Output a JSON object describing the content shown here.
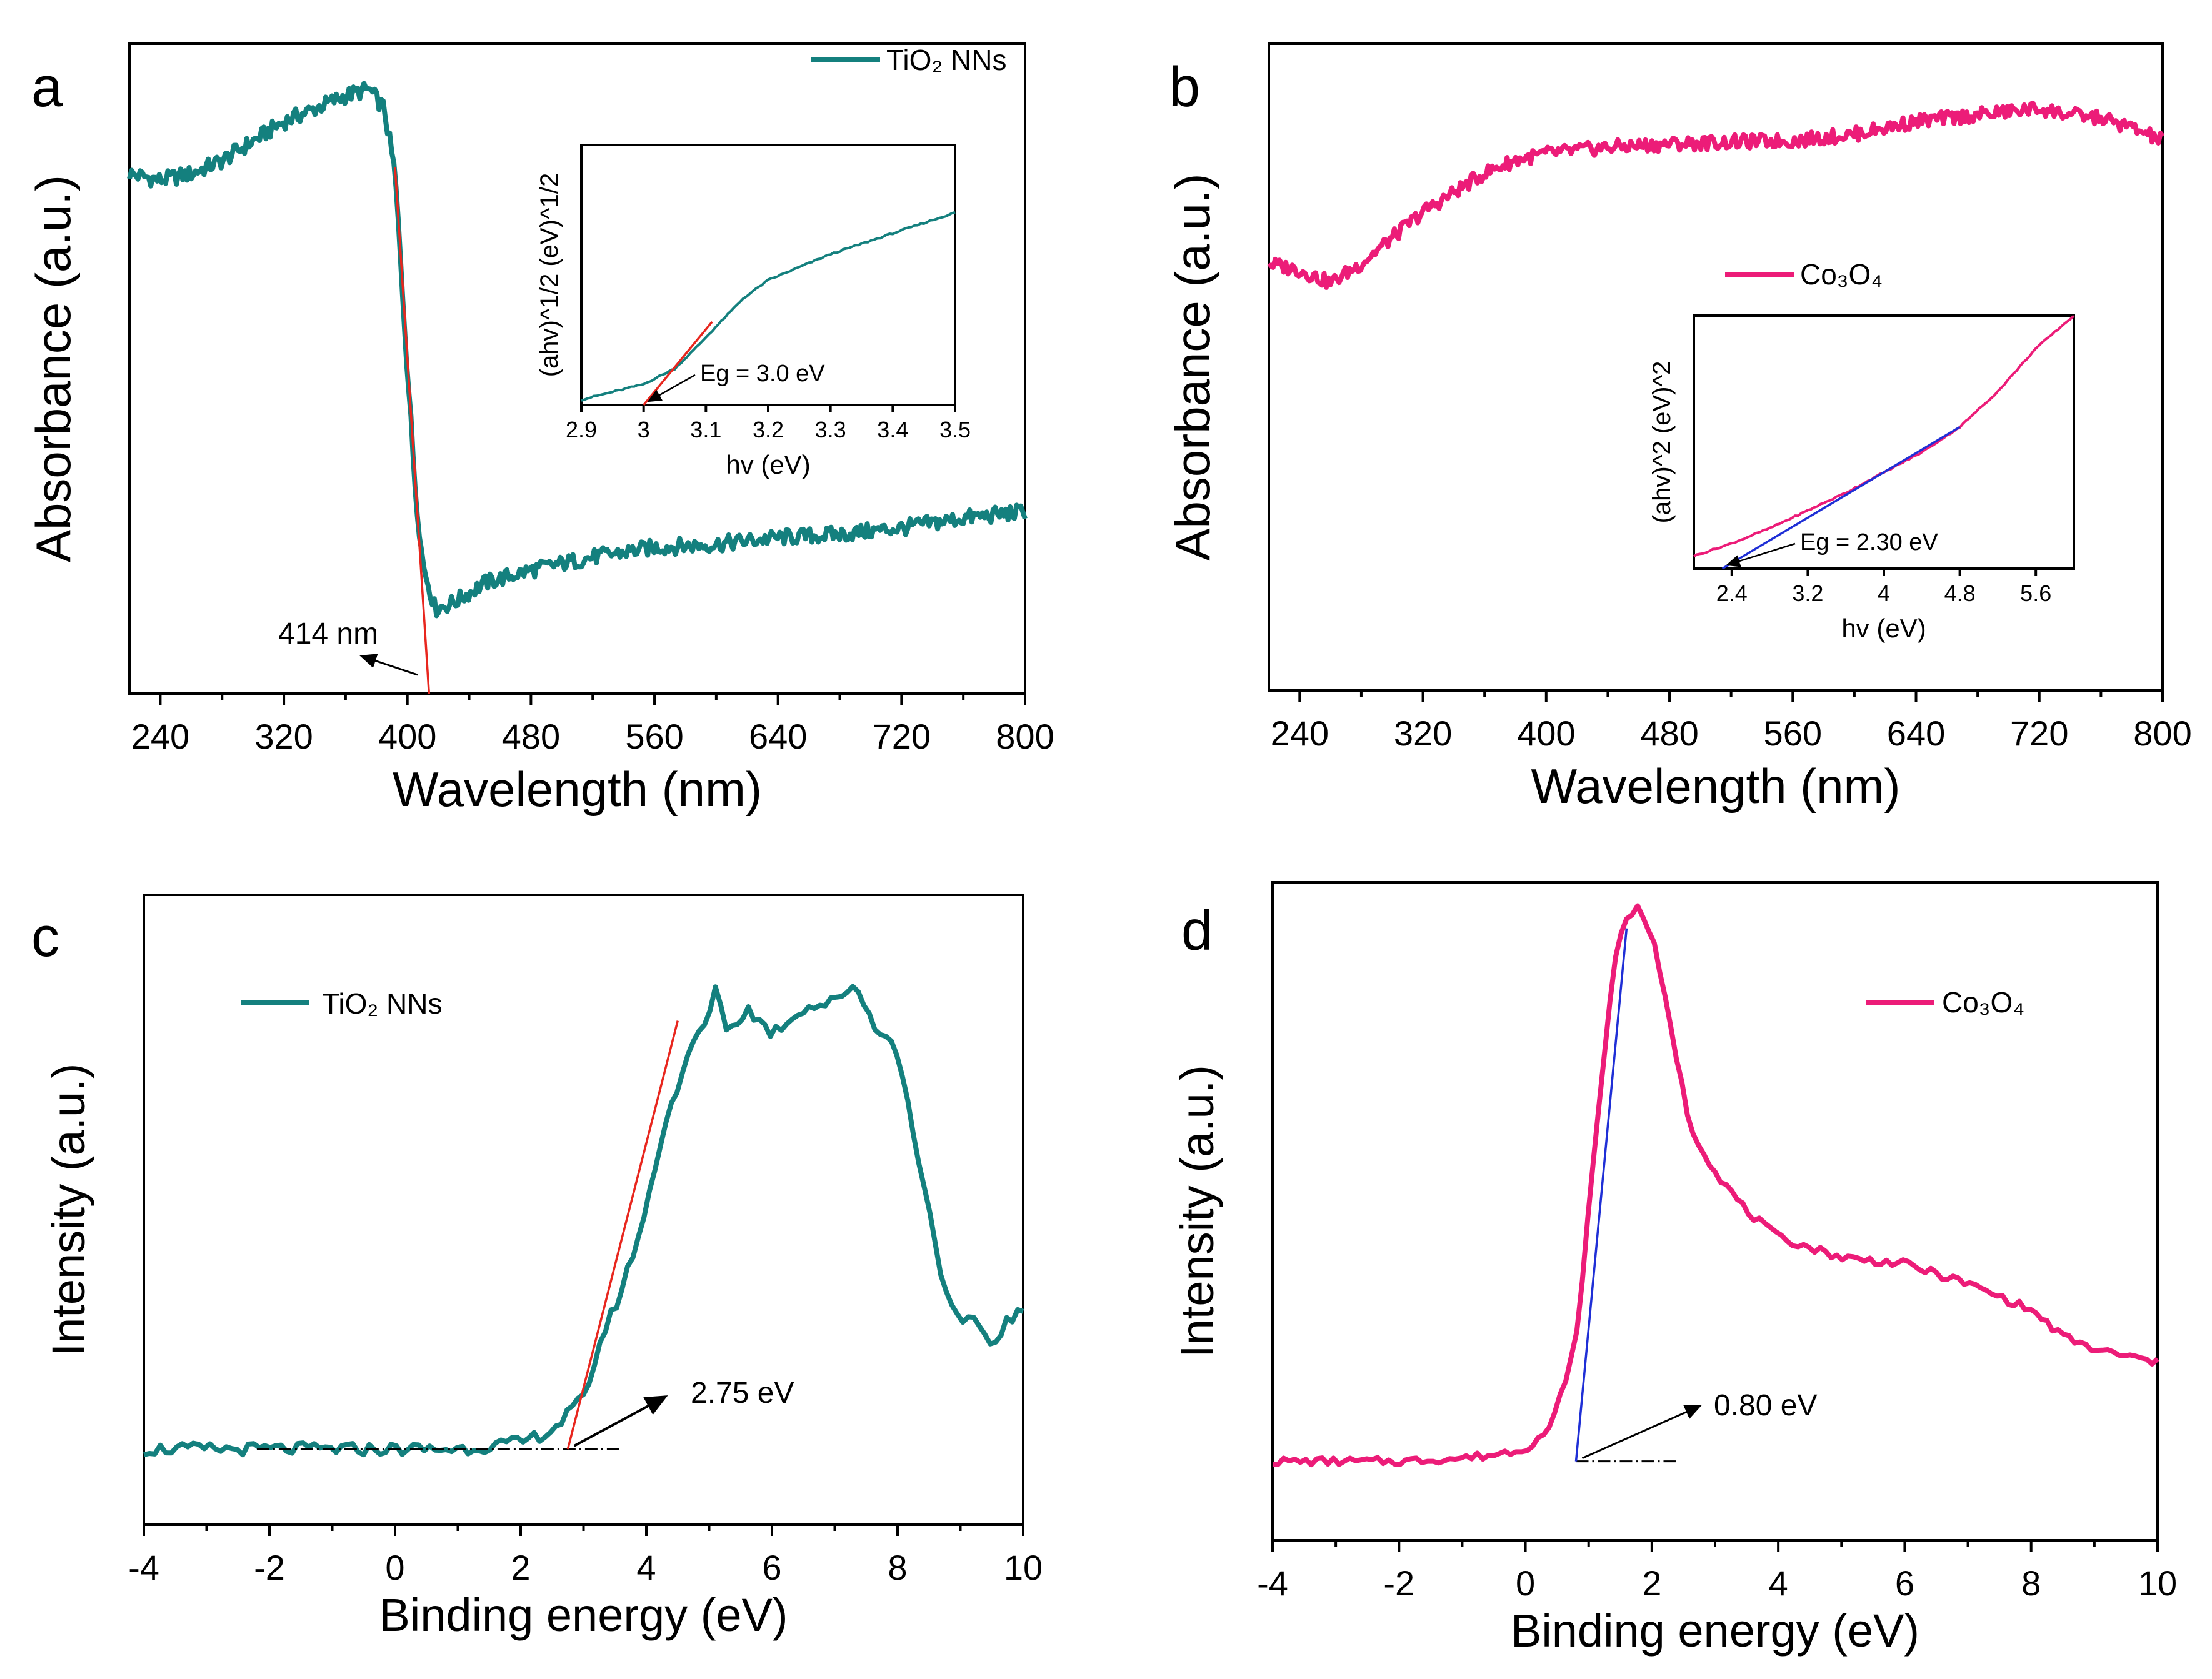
{
  "colors": {
    "tio2": "#14807E",
    "co3o4": "#EC1C78",
    "fit_red": "#E8261E",
    "fit_blue": "#1F2FD6",
    "eg_text": "#1122E8"
  },
  "chart_data": [
    {
      "panel_label": "a",
      "type": "line",
      "xlabel": "Wavelength (nm)",
      "ylabel": "Absorbance (a.u.)",
      "xlim": [
        220,
        800
      ],
      "ylim": [
        0,
        1
      ],
      "xticks": [
        240,
        320,
        400,
        480,
        560,
        640,
        720,
        800
      ],
      "legend": "TiO₂ NNs",
      "series": [
        {
          "name": "TiO₂ NNs",
          "color": "#14807E",
          "x": [
            220,
            240,
            260,
            280,
            300,
            320,
            340,
            360,
            375,
            385,
            392,
            400,
            405,
            410,
            418,
            430,
            450,
            480,
            520,
            560,
            600,
            640,
            680,
            720,
            760,
            800
          ],
          "y": [
            0.8,
            0.79,
            0.8,
            0.82,
            0.85,
            0.88,
            0.9,
            0.92,
            0.93,
            0.9,
            0.8,
            0.5,
            0.32,
            0.2,
            0.13,
            0.14,
            0.17,
            0.19,
            0.21,
            0.225,
            0.23,
            0.24,
            0.245,
            0.255,
            0.27,
            0.28
          ]
        }
      ],
      "fit_line": {
        "x": [
          392,
          414
        ],
        "y": [
          0.81,
          0.0
        ]
      },
      "annotation": "414 nm",
      "inset": {
        "xlabel": "hv (eV)",
        "ylabel": "(ahv)^1/2 (eV)^1/2",
        "xlim": [
          2.9,
          3.5
        ],
        "xticks": [
          2.9,
          3.0,
          3.1,
          3.2,
          3.3,
          3.4,
          3.5
        ],
        "x": [
          2.9,
          2.95,
          3.0,
          3.05,
          3.08,
          3.12,
          3.16,
          3.2,
          3.3,
          3.4,
          3.5
        ],
        "y": [
          0.02,
          0.05,
          0.08,
          0.14,
          0.21,
          0.31,
          0.41,
          0.48,
          0.58,
          0.66,
          0.74
        ],
        "fit_line": {
          "x": [
            3.0,
            3.11
          ],
          "y": [
            0.0,
            0.32
          ]
        },
        "eg_label": "Eg = 3.0 eV"
      }
    },
    {
      "panel_label": "b",
      "type": "line",
      "xlabel": "Wavelength (nm)",
      "ylabel": "Absorbance (a.u.)",
      "xlim": [
        220,
        800
      ],
      "ylim": [
        0,
        1
      ],
      "xticks": [
        240,
        320,
        400,
        480,
        560,
        640,
        720,
        800
      ],
      "legend": "Co₃O₄",
      "series": [
        {
          "name": "Co₃O₄",
          "color": "#EC1C78",
          "x": [
            220,
            240,
            260,
            280,
            300,
            320,
            340,
            360,
            380,
            400,
            440,
            480,
            520,
            560,
            600,
            640,
            680,
            700,
            720,
            740,
            760,
            780,
            800
          ],
          "y": [
            0.66,
            0.65,
            0.63,
            0.66,
            0.7,
            0.74,
            0.77,
            0.8,
            0.82,
            0.83,
            0.84,
            0.845,
            0.848,
            0.85,
            0.86,
            0.88,
            0.89,
            0.895,
            0.9,
            0.89,
            0.885,
            0.87,
            0.85
          ]
        }
      ],
      "inset": {
        "xlabel": "hv (eV)",
        "ylabel": "(ahv)^2 (eV)^2",
        "xlim": [
          2.0,
          6.0
        ],
        "xticks": [
          2.4,
          3.2,
          4.0,
          4.8,
          5.6
        ],
        "x": [
          2.0,
          2.4,
          2.8,
          3.2,
          3.6,
          4.0,
          4.4,
          4.8,
          5.2,
          5.6,
          6.0
        ],
        "y": [
          0.05,
          0.1,
          0.16,
          0.23,
          0.3,
          0.38,
          0.46,
          0.56,
          0.7,
          0.87,
          1.0
        ],
        "fit_line": {
          "x": [
            2.3,
            4.8
          ],
          "y": [
            0.0,
            0.56
          ]
        },
        "eg_label": "Eg = 2.30 eV"
      }
    },
    {
      "panel_label": "c",
      "type": "line",
      "xlabel": "Binding energy (eV)",
      "ylabel": "Intensity (a.u.)",
      "xlim": [
        -4,
        10
      ],
      "ylim": [
        0,
        1
      ],
      "xticks": [
        -4,
        -2,
        0,
        2,
        4,
        6,
        8,
        10
      ],
      "legend": "TiO₂ NNs",
      "series": [
        {
          "name": "TiO₂ NNs",
          "color": "#14807E",
          "x": [
            -4,
            -3,
            -2,
            -1,
            0,
            1,
            2,
            2.5,
            3,
            3.3,
            3.6,
            4,
            4.2,
            4.4,
            4.6,
            4.8,
            5,
            5.1,
            5.3,
            5.6,
            6,
            6.5,
            7,
            7.3,
            7.6,
            8,
            8.3,
            8.6,
            8.8,
            9,
            9.3,
            9.5,
            9.7,
            10
          ],
          "y": [
            0.12,
            0.12,
            0.12,
            0.12,
            0.12,
            0.12,
            0.13,
            0.15,
            0.2,
            0.3,
            0.37,
            0.5,
            0.6,
            0.67,
            0.72,
            0.78,
            0.8,
            0.86,
            0.78,
            0.82,
            0.78,
            0.82,
            0.83,
            0.86,
            0.8,
            0.75,
            0.6,
            0.45,
            0.35,
            0.32,
            0.32,
            0.28,
            0.32,
            0.34
          ]
        }
      ],
      "fit_line": {
        "x": [
          2.75,
          4.5
        ],
        "y": [
          0.12,
          0.8
        ]
      },
      "baseline": {
        "x": [
          -2.2,
          3.6
        ],
        "y": [
          0.12,
          0.12
        ]
      },
      "annotation": "2.75 eV"
    },
    {
      "panel_label": "d",
      "type": "line",
      "xlabel": "Binding energy (eV)",
      "ylabel": "Intensity (a.u.)",
      "xlim": [
        -4,
        10
      ],
      "ylim": [
        0,
        1
      ],
      "xticks": [
        -4,
        -2,
        0,
        2,
        4,
        6,
        8,
        10
      ],
      "legend": "Co₃O₄",
      "series": [
        {
          "name": "Co₃O₄",
          "color": "#EC1C78",
          "x": [
            -4,
            -3,
            -2,
            -1,
            -0.5,
            0,
            0.4,
            0.8,
            1.1,
            1.4,
            1.6,
            1.8,
            2.0,
            2.3,
            2.6,
            3.0,
            3.5,
            4,
            5,
            6,
            7,
            8,
            8.5,
            9,
            9.5,
            10
          ],
          "y": [
            0.12,
            0.12,
            0.12,
            0.125,
            0.13,
            0.14,
            0.17,
            0.3,
            0.6,
            0.88,
            0.95,
            0.96,
            0.92,
            0.78,
            0.63,
            0.56,
            0.5,
            0.46,
            0.43,
            0.42,
            0.39,
            0.35,
            0.31,
            0.29,
            0.28,
            0.27
          ]
        }
      ],
      "fit_line": {
        "x": [
          0.8,
          1.6
        ],
        "y": [
          0.12,
          0.93
        ]
      },
      "baseline": {
        "x": [
          0.8,
          2.4
        ],
        "y": [
          0.12,
          0.12
        ]
      },
      "annotation": "0.80 eV"
    }
  ]
}
